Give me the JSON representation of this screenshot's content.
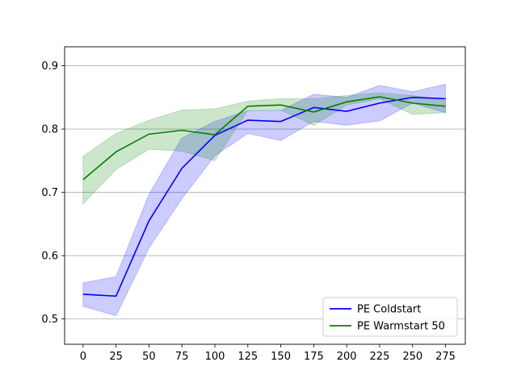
{
  "chart_data": {
    "type": "line",
    "x": [
      0,
      25,
      50,
      75,
      100,
      125,
      150,
      175,
      200,
      225,
      250,
      275
    ],
    "xticks": [
      0,
      25,
      50,
      75,
      100,
      125,
      150,
      175,
      200,
      225,
      250,
      275
    ],
    "yticks": [
      0.5,
      0.6,
      0.7,
      0.8,
      0.9
    ],
    "xlim": [
      -14,
      290
    ],
    "ylim": [
      0.46,
      0.93
    ],
    "grid": "horizontal",
    "legend_position": "lower-right",
    "series": [
      {
        "name": "PE Coldstart",
        "color": "#0000ff",
        "band_color": "#0000ff",
        "values": [
          0.539,
          0.536,
          0.655,
          0.738,
          0.79,
          0.814,
          0.812,
          0.834,
          0.828,
          0.841,
          0.85,
          0.848
        ],
        "lower": [
          0.52,
          0.505,
          0.612,
          0.69,
          0.758,
          0.793,
          0.782,
          0.812,
          0.806,
          0.813,
          0.841,
          0.826
        ],
        "upper": [
          0.557,
          0.567,
          0.697,
          0.786,
          0.812,
          0.829,
          0.829,
          0.855,
          0.85,
          0.869,
          0.859,
          0.871
        ]
      },
      {
        "name": "PE Warmstart 50",
        "color": "#008000",
        "band_color": "#008000",
        "values": [
          0.72,
          0.764,
          0.792,
          0.798,
          0.791,
          0.836,
          0.838,
          0.827,
          0.843,
          0.851,
          0.841,
          0.836
        ],
        "lower": [
          0.682,
          0.736,
          0.768,
          0.765,
          0.75,
          0.83,
          0.83,
          0.806,
          0.838,
          0.848,
          0.823,
          0.826
        ],
        "upper": [
          0.757,
          0.793,
          0.814,
          0.83,
          0.832,
          0.844,
          0.848,
          0.848,
          0.853,
          0.857,
          0.853,
          0.846
        ]
      }
    ]
  }
}
